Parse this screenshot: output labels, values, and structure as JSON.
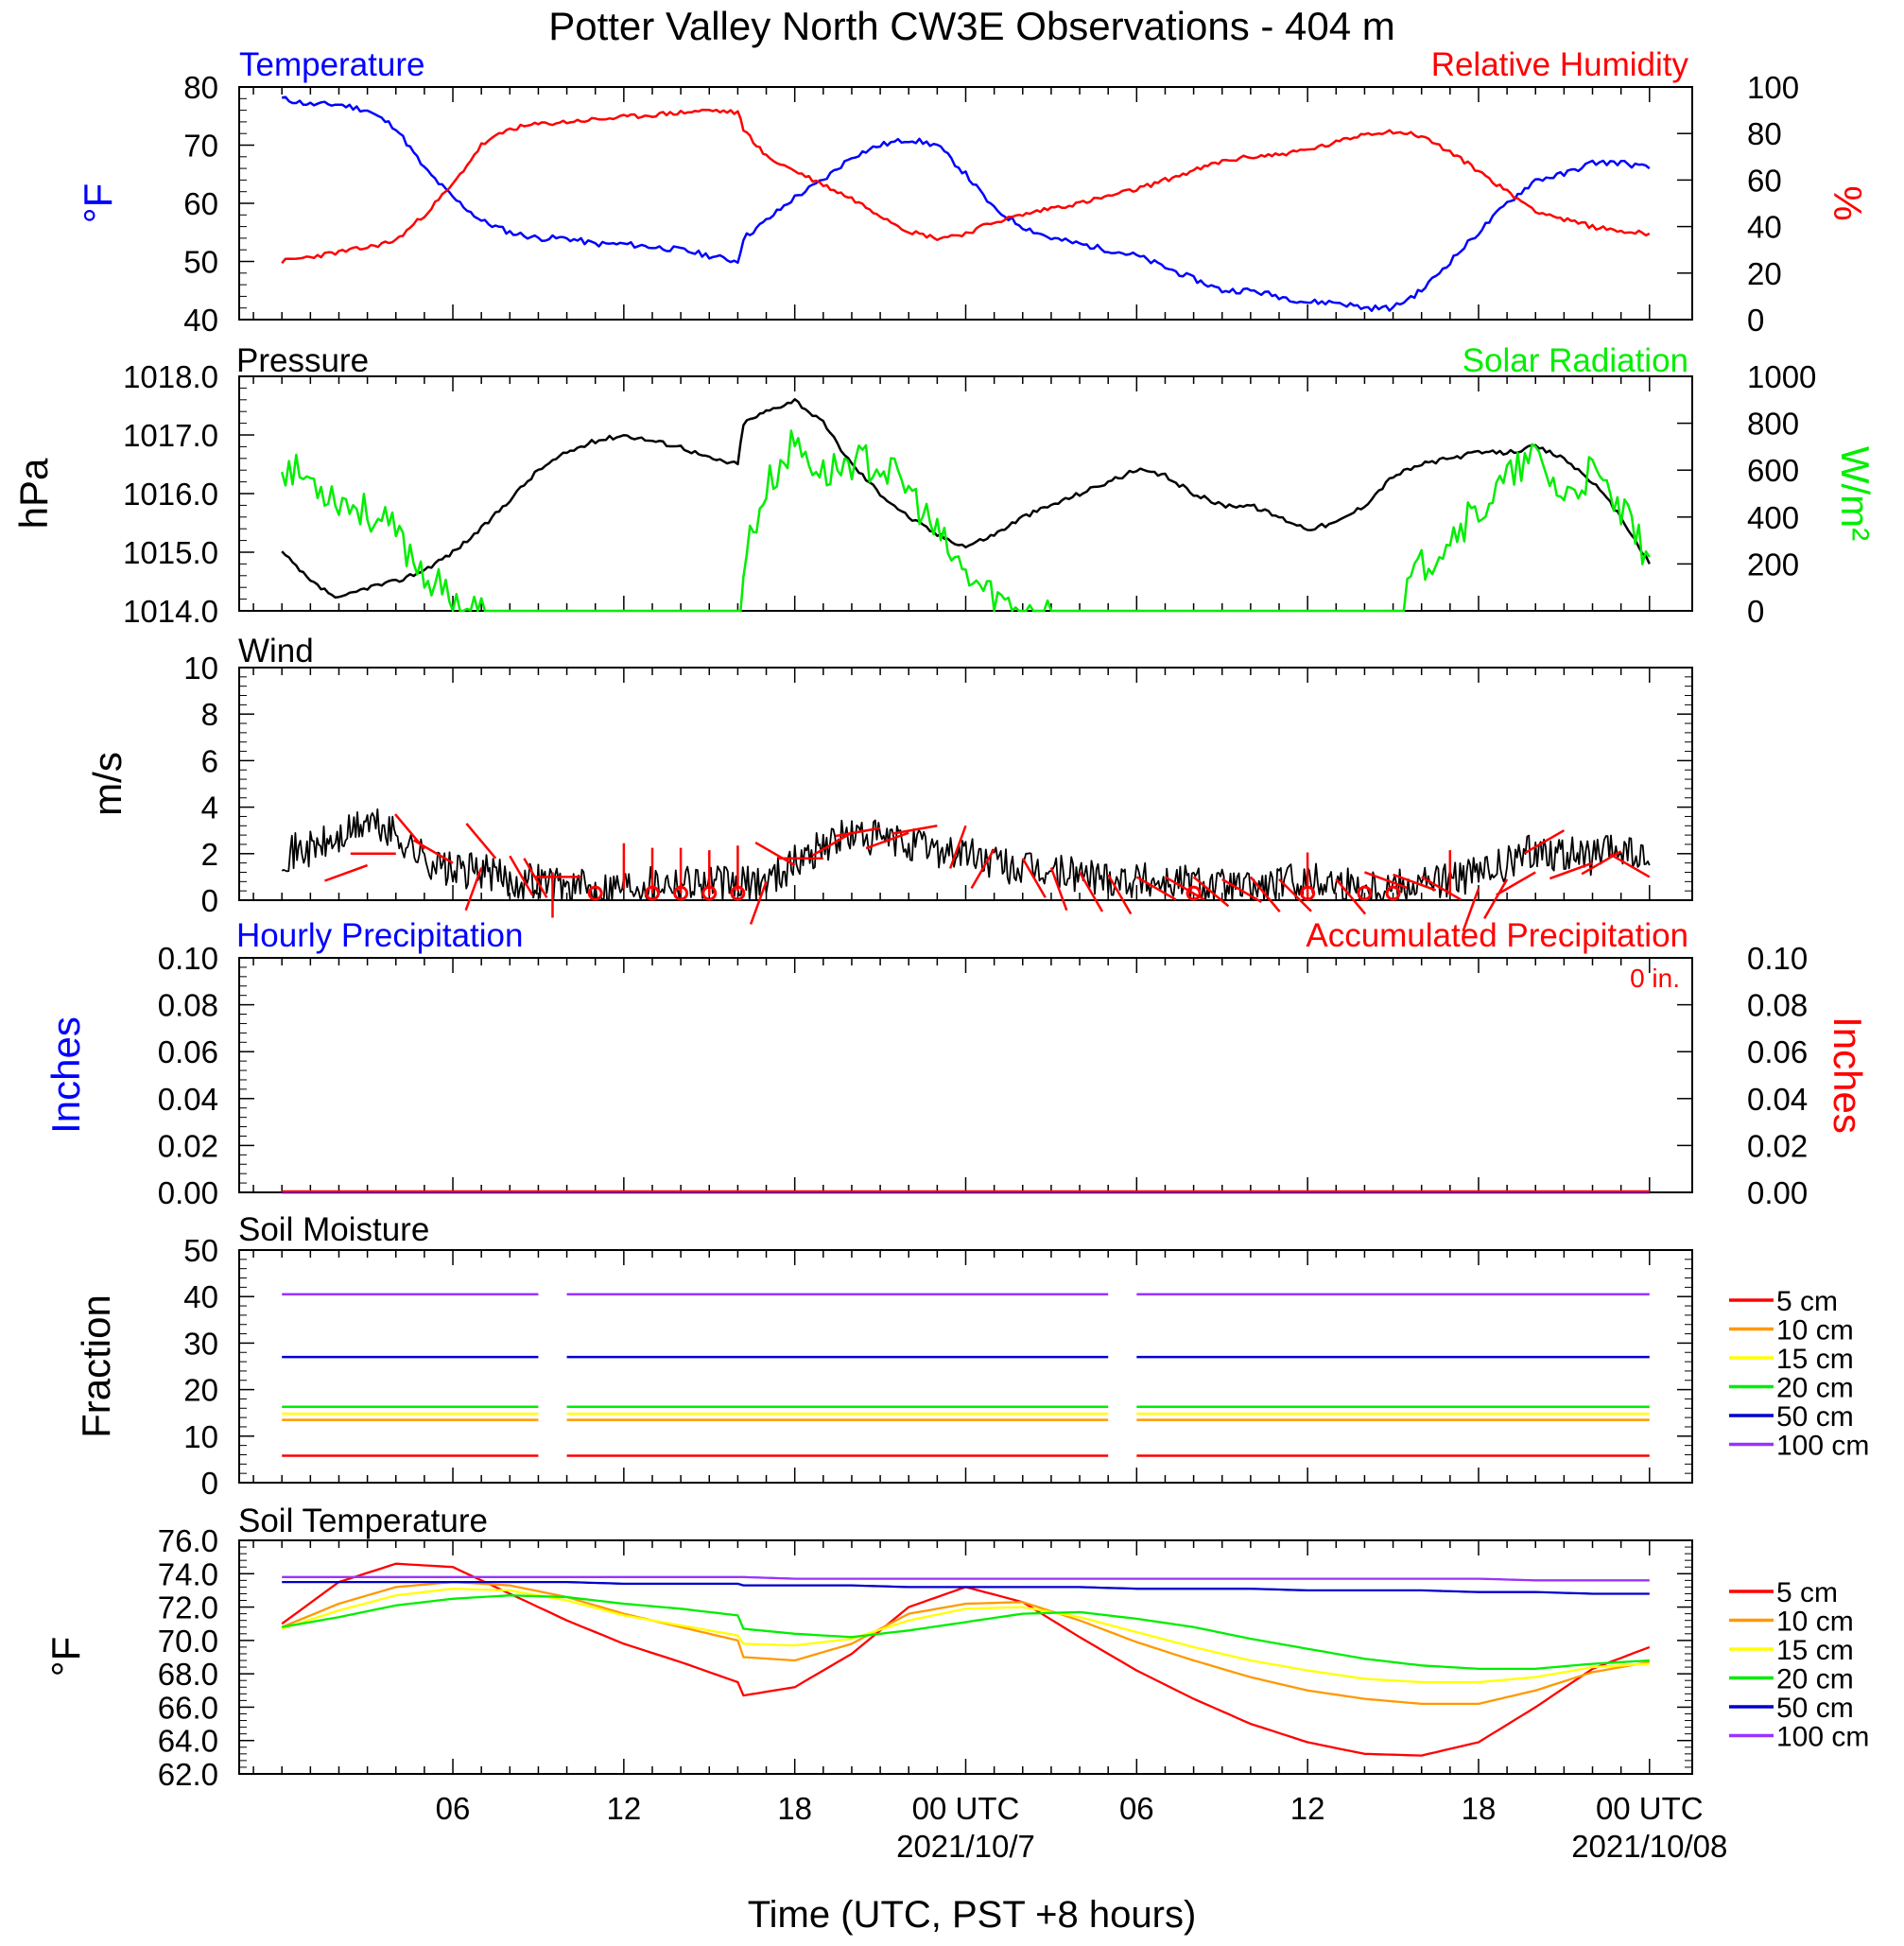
{
  "title": "Potter Valley North CW3E Observations - 404 m",
  "x_axis": {
    "label": "Time (UTC, PST +8 hours)",
    "tick_labels": [
      "06",
      "12",
      "18",
      "00 UTC",
      "06",
      "12",
      "18",
      "00 UTC"
    ],
    "date_labels": [
      "2021/10/7",
      "2021/10/08"
    ]
  },
  "colors": {
    "blue": "#0000ff",
    "red": "#ff0000",
    "green": "#00ee00",
    "black": "#000000",
    "orange": "#ff9900",
    "yellow": "#ffff00",
    "navy": "#0000cc",
    "purple": "#9933ff"
  },
  "chart_data": [
    {
      "type": "line",
      "title_left": "Temperature",
      "title_right": "Relative Humidity",
      "ylabel_left": "°F",
      "ylabel_right": "%",
      "ylim_left": [
        40,
        80
      ],
      "ylim_right": [
        0,
        100
      ],
      "yticks_left": [
        "80",
        "70",
        "60",
        "50",
        "40"
      ],
      "yticks_right": [
        "100",
        "80",
        "60",
        "40",
        "20",
        "0"
      ],
      "x_hours": [
        0,
        1,
        2,
        3,
        4,
        5,
        6,
        7,
        8,
        9,
        10,
        11,
        12,
        13,
        14,
        15,
        16,
        16.2,
        17,
        18,
        19,
        20,
        21,
        22,
        23,
        24,
        25,
        26,
        27,
        28,
        29,
        30,
        31,
        32,
        33,
        34,
        35,
        36,
        37,
        38,
        39,
        40,
        41,
        42,
        43,
        44,
        45,
        46,
        47,
        48
      ],
      "series": [
        {
          "name": "Temperature",
          "axis": "left",
          "color": "blue",
          "values": [
            78,
            77,
            77,
            76,
            73,
            66,
            61,
            57,
            55,
            54,
            54,
            53,
            53,
            52.5,
            52,
            51,
            50,
            54,
            57,
            61,
            64,
            68,
            70,
            71,
            70,
            65,
            59,
            56,
            54,
            53,
            52,
            51,
            49,
            47,
            45,
            45,
            44,
            43,
            43,
            42,
            42,
            45,
            50,
            55,
            60,
            64,
            65,
            67,
            67,
            66
          ]
        },
        {
          "name": "Relative Humidity",
          "axis": "right",
          "color": "red",
          "values": [
            25,
            27,
            29,
            31,
            34,
            45,
            58,
            75,
            82,
            84,
            85,
            86,
            87,
            88,
            89,
            90,
            89,
            82,
            70,
            64,
            58,
            52,
            45,
            38,
            35,
            37,
            42,
            45,
            48,
            50,
            53,
            56,
            60,
            64,
            68,
            70,
            71,
            73,
            76,
            80,
            81,
            79,
            72,
            64,
            55,
            47,
            43,
            40,
            38,
            37
          ]
        }
      ]
    },
    {
      "type": "line",
      "title_left": "Pressure",
      "title_right": "Solar Radiation",
      "ylabel_left": "hPa",
      "ylabel_right": "W/m²",
      "ylim_left": [
        1014.0,
        1018.0
      ],
      "ylim_right": [
        0,
        1000
      ],
      "yticks_left": [
        "1018.0",
        "1017.0",
        "1016.0",
        "1015.0",
        "1014.0"
      ],
      "yticks_right": [
        "1000",
        "800",
        "600",
        "400",
        "200",
        "0"
      ],
      "x_hours": [
        0,
        1,
        2,
        3,
        4,
        5,
        6,
        7,
        8,
        9,
        10,
        11,
        12,
        13,
        14,
        15,
        16,
        16.2,
        17,
        18,
        19,
        20,
        21,
        22,
        23,
        24,
        25,
        26,
        27,
        28,
        29,
        30,
        31,
        32,
        33,
        34,
        35,
        36,
        37,
        38,
        39,
        40,
        41,
        42,
        43,
        44,
        45,
        46,
        47,
        48
      ],
      "series": [
        {
          "name": "Pressure",
          "axis": "left",
          "color": "black",
          "values": [
            1015.0,
            1014.5,
            1014.2,
            1014.4,
            1014.5,
            1014.7,
            1015.0,
            1015.4,
            1015.9,
            1016.4,
            1016.7,
            1016.9,
            1017.0,
            1016.9,
            1016.8,
            1016.6,
            1016.5,
            1017.2,
            1017.4,
            1017.6,
            1017.2,
            1016.5,
            1016.0,
            1015.6,
            1015.3,
            1015.1,
            1015.3,
            1015.6,
            1015.8,
            1016.0,
            1016.2,
            1016.4,
            1016.3,
            1016.0,
            1015.8,
            1015.8,
            1015.6,
            1015.4,
            1015.5,
            1015.8,
            1016.3,
            1016.5,
            1016.6,
            1016.7,
            1016.7,
            1016.8,
            1016.6,
            1016.2,
            1015.6,
            1014.8
          ]
        },
        {
          "name": "Solar Radiation",
          "axis": "right",
          "color": "green",
          "values": [
            620,
            560,
            480,
            420,
            330,
            160,
            40,
            0,
            0,
            0,
            0,
            0,
            0,
            0,
            0,
            0,
            0,
            220,
            520,
            720,
            580,
            640,
            620,
            520,
            320,
            150,
            60,
            0,
            0,
            0,
            0,
            0,
            0,
            0,
            0,
            0,
            0,
            0,
            0,
            0,
            40,
            180,
            330,
            420,
            560,
            660,
            480,
            590,
            420,
            230
          ]
        }
      ]
    },
    {
      "type": "line",
      "title_left": "Wind",
      "ylabel_left": "m/s",
      "ylim_left": [
        0,
        10
      ],
      "yticks_left": [
        "10",
        "8",
        "6",
        "4",
        "2",
        "0"
      ],
      "x_hours": [
        0,
        1,
        2,
        3,
        4,
        5,
        6,
        7,
        8,
        9,
        10,
        11,
        12,
        13,
        14,
        15,
        16,
        17,
        18,
        19,
        20,
        21,
        22,
        23,
        24,
        25,
        26,
        27,
        28,
        29,
        30,
        31,
        32,
        33,
        34,
        35,
        36,
        37,
        38,
        39,
        40,
        41,
        42,
        43,
        44,
        45,
        46,
        47,
        48
      ],
      "series": [
        {
          "name": "Wind speed",
          "axis": "left",
          "color": "black",
          "values": [
            2.0,
            2.2,
            2.6,
            3.4,
            2.8,
            1.8,
            1.2,
            1.3,
            0.8,
            0.9,
            0.6,
            0.5,
            0.7,
            0.8,
            0.9,
            0.8,
            0.6,
            0.9,
            1.6,
            2.4,
            2.8,
            2.6,
            2.4,
            2.2,
            2.0,
            1.6,
            1.3,
            1.2,
            1.1,
            1.0,
            0.9,
            0.8,
            0.8,
            0.6,
            0.5,
            0.7,
            0.9,
            0.8,
            0.6,
            0.7,
            0.8,
            0.9,
            1.1,
            1.5,
            2.2,
            2.0,
            1.8,
            2.2,
            1.5
          ]
        }
      ],
      "barb_hours": [
        3,
        4,
        5,
        6,
        7,
        7.5,
        8,
        8.5,
        9.5,
        10.5,
        12,
        13,
        14,
        15,
        16,
        17,
        18,
        19,
        20,
        21,
        22,
        23,
        24,
        25,
        26,
        27,
        28,
        29,
        30,
        31,
        32,
        33,
        34,
        35,
        36,
        37,
        38,
        39,
        40,
        41,
        42,
        43,
        44,
        45,
        46,
        47,
        48
      ],
      "barb_speed": [
        1.5,
        2.0,
        2.2,
        1.6,
        1.4,
        1.8,
        1.9,
        1.8,
        1.2,
        1.0,
        0.5,
        0.3,
        0.3,
        0.2,
        0.4,
        0.8,
        1.5,
        1.8,
        2.9,
        3.1,
        2.9,
        3.2,
        3.2,
        2.2,
        1.8,
        1.4,
        1.2,
        1.1,
        1.0,
        1.0,
        1.0,
        0.9,
        1.0,
        0.9,
        0.1,
        0.9,
        1.2,
        1.1,
        1.0,
        0.2,
        0.5,
        0.9,
        1.2,
        3.0,
        1.6,
        2.1,
        1.0
      ],
      "barb_dir": [
        250,
        270,
        320,
        300,
        200,
        320,
        150,
        150,
        180,
        270,
        0,
        0,
        0,
        0,
        0,
        200,
        300,
        270,
        240,
        260,
        250,
        260,
        200,
        210,
        150,
        160,
        150,
        150,
        120,
        120,
        130,
        120,
        140,
        135,
        0,
        140,
        110,
        110,
        120,
        0,
        200,
        210,
        240,
        240,
        250,
        240,
        300
      ],
      "calm_hours": [
        11,
        13,
        14,
        15,
        16,
        32,
        36,
        38,
        39
      ]
    },
    {
      "type": "line",
      "title_left": "Hourly Precipitation",
      "title_right": "Accumulated Precipitation",
      "accum_label": "0 in.",
      "ylabel_left": "Inches",
      "ylabel_right": "Inches",
      "ylim_left": [
        0,
        0.1
      ],
      "ylim_right": [
        0,
        0.1
      ],
      "yticks_left": [
        "0.10",
        "0.08",
        "0.06",
        "0.04",
        "0.02",
        "0.00"
      ],
      "yticks_right": [
        "0.10",
        "0.08",
        "0.06",
        "0.04",
        "0.02",
        "0.00"
      ],
      "x_hours": [
        0,
        48
      ],
      "series": [
        {
          "name": "Hourly Precipitation",
          "axis": "left",
          "color": "blue",
          "values": [
            0,
            0
          ]
        },
        {
          "name": "Accumulated Precipitation",
          "axis": "right",
          "color": "red",
          "values": [
            0,
            0
          ]
        }
      ]
    },
    {
      "type": "line",
      "title_left": "Soil Moisture",
      "ylabel_left": "Fraction",
      "ylim_left": [
        0,
        50
      ],
      "yticks_left": [
        "50",
        "40",
        "30",
        "20",
        "10",
        "0"
      ],
      "segments_hours": [
        [
          0,
          9
        ],
        [
          10,
          29
        ],
        [
          30,
          48
        ]
      ],
      "series": [
        {
          "name": "5 cm",
          "color": "red",
          "value": 5.8
        },
        {
          "name": "10 cm",
          "color": "orange",
          "value": 13.5
        },
        {
          "name": "15 cm",
          "color": "yellow",
          "value": 14.8
        },
        {
          "name": "20 cm",
          "color": "green",
          "value": 16.3
        },
        {
          "name": "50 cm",
          "color": "navy",
          "value": 27.0
        },
        {
          "name": "100 cm",
          "color": "purple",
          "value": 40.5
        }
      ]
    },
    {
      "type": "line",
      "title_left": "Soil Temperature",
      "ylabel_left": "°F",
      "ylim_left": [
        62.0,
        76.0
      ],
      "yticks_left": [
        "76.0",
        "74.0",
        "72.0",
        "70.0",
        "68.0",
        "66.0",
        "64.0",
        "62.0"
      ],
      "x_hours": [
        0,
        2,
        4,
        6,
        8,
        10,
        12,
        14,
        16,
        16.2,
        18,
        20,
        22,
        24,
        26,
        28,
        30,
        32,
        34,
        36,
        38,
        40,
        42,
        44,
        46,
        48
      ],
      "series": [
        {
          "name": "5 cm",
          "color": "red",
          "values": [
            71.0,
            73.5,
            74.6,
            74.4,
            72.8,
            71.2,
            69.8,
            68.7,
            67.5,
            66.7,
            67.2,
            69.2,
            72.0,
            73.2,
            72.3,
            70.2,
            68.2,
            66.5,
            65.0,
            63.9,
            63.2,
            63.1,
            63.9,
            66.0,
            68.3,
            69.6
          ]
        },
        {
          "name": "10 cm",
          "color": "orange",
          "values": [
            70.8,
            72.2,
            73.2,
            73.5,
            73.3,
            72.6,
            71.6,
            70.8,
            70.0,
            69.0,
            68.8,
            69.8,
            71.6,
            72.2,
            72.3,
            71.2,
            69.9,
            68.8,
            67.8,
            67.0,
            66.5,
            66.2,
            66.2,
            67.0,
            68.1,
            68.7
          ]
        },
        {
          "name": "15 cm",
          "color": "yellow",
          "values": [
            70.7,
            71.8,
            72.7,
            73.1,
            73.0,
            72.4,
            71.5,
            70.9,
            70.3,
            69.8,
            69.7,
            70.1,
            71.2,
            71.9,
            72.0,
            71.4,
            70.5,
            69.6,
            68.8,
            68.2,
            67.7,
            67.5,
            67.5,
            67.8,
            68.4,
            68.6
          ]
        },
        {
          "name": "20 cm",
          "color": "green",
          "values": [
            70.8,
            71.4,
            72.1,
            72.5,
            72.7,
            72.6,
            72.2,
            71.9,
            71.5,
            70.7,
            70.4,
            70.2,
            70.6,
            71.1,
            71.6,
            71.7,
            71.3,
            70.8,
            70.1,
            69.5,
            68.9,
            68.5,
            68.3,
            68.3,
            68.6,
            68.8
          ]
        },
        {
          "name": "50 cm",
          "color": "navy",
          "values": [
            73.5,
            73.5,
            73.5,
            73.5,
            73.5,
            73.5,
            73.4,
            73.4,
            73.4,
            73.3,
            73.3,
            73.3,
            73.2,
            73.2,
            73.2,
            73.2,
            73.1,
            73.1,
            73.1,
            73.0,
            73.0,
            73.0,
            72.9,
            72.9,
            72.8,
            72.8
          ]
        },
        {
          "name": "100 cm",
          "color": "purple",
          "values": [
            73.8,
            73.8,
            73.8,
            73.8,
            73.8,
            73.8,
            73.8,
            73.8,
            73.8,
            73.8,
            73.7,
            73.7,
            73.7,
            73.7,
            73.7,
            73.7,
            73.7,
            73.7,
            73.7,
            73.7,
            73.7,
            73.7,
            73.7,
            73.6,
            73.6,
            73.6
          ]
        }
      ]
    }
  ]
}
